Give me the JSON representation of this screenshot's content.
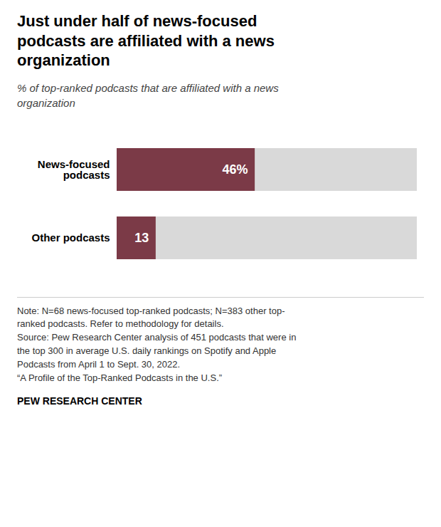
{
  "chart_data": {
    "type": "bar",
    "orientation": "horizontal",
    "title": "Just under half of news-focused\npodcasts are affiliated with a news\norganization",
    "subtitle": "% of top-ranked podcasts that are affiliated with a news\norganization",
    "categories": [
      "News-focused\npodcasts",
      "Other podcasts"
    ],
    "values": [
      46,
      13
    ],
    "value_labels": [
      "46%",
      "13"
    ],
    "data_labels": true,
    "color": "#7B3A47",
    "xlim": [
      0,
      100
    ],
    "tick_labels": "y",
    "grid": false,
    "caption": "Note: N=68 news-focused top-ranked podcasts; N=383 other top-\nranked podcasts. Refer to methodology for details.\nSource: Pew Research Center analysis of 451 podcasts that were in\nthe top 300 in average U.S. daily rankings on Spotify and Apple\nPodcasts from April 1 to Sept. 30, 2022.\n“A Profile of the Top-Ranked Podcasts in the U.S.”",
    "credit": "PEW RESEARCH CENTER"
  }
}
